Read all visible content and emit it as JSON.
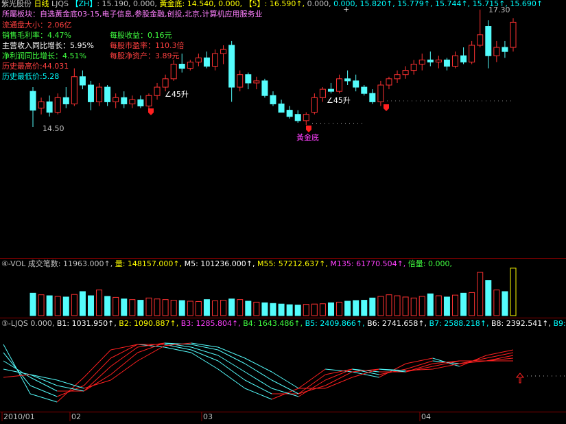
{
  "chart_data": [
    {
      "type": "candlestick",
      "header": [
        {
          "text": "紫光股份",
          "color": "#c0c0c0"
        },
        {
          "text": " 日线 ",
          "color": "#ffff00"
        },
        {
          "text": "LJQS ",
          "color": "#c0c0c0"
        },
        {
          "text": "【ZH】",
          "color": "#00ffff"
        },
        {
          "text": ": 15.190, 0.000, ",
          "color": "#c0c0c0"
        },
        {
          "text": "黃金底: 14.540, 0.000, ",
          "color": "#ffff00"
        },
        {
          "text": "【5】: 16.590↑, ",
          "color": "#ffff00"
        },
        {
          "text": "0.000, ",
          "color": "#c0c0c0"
        },
        {
          "text": "0.000, ",
          "color": "#00ffff"
        },
        {
          "text": "15.820↑, ",
          "color": "#00ffff"
        },
        {
          "text": "15.779↑, ",
          "color": "#00ffff"
        },
        {
          "text": "15.744↑, ",
          "color": "#00ffff"
        },
        {
          "text": "15.715↑, ",
          "color": "#00ffff"
        },
        {
          "text": "15.690↑",
          "color": "#00ffff"
        }
      ],
      "info": [
        {
          "text": "所屬板块：自选黃金底03-15,电子信息,参股金融,创投,北京,计算机应用服务业",
          "color": "#ff80ff"
        },
        {
          "text": "流通盘大小：2.06亿",
          "color": "#ff4040"
        },
        {
          "text": "销售毛利率：4.47%",
          "color": "#40ff40"
        },
        {
          "text": "每股收益：0.16元",
          "color": "#40ff40"
        },
        {
          "text": "主营收入同比增长：5.95%",
          "color": "#ffffff"
        },
        {
          "text": "每股市盈率：110.3倍",
          "color": "#ff4040"
        },
        {
          "text": "净利润同比增长：4.51%",
          "color": "#40ff40"
        },
        {
          "text": "每股净资产：3.89元",
          "color": "#ff4040"
        },
        {
          "text": "历史最高价:44.031",
          "color": "#ff4040"
        },
        {
          "text": "历史最低价:5.28",
          "color": "#00ffff"
        }
      ],
      "annotations": [
        "14.50",
        "17.30",
        "黃金底",
        "∠45升",
        "∠45升"
      ],
      "open": [
        15.35,
        14.95,
        15.1,
        14.85,
        15.2,
        15.05,
        15.7,
        15.5,
        15.1,
        15.45,
        15.1,
        15.2,
        15.05,
        15.15,
        15.0,
        15.25,
        15.45,
        15.65,
        16.0,
        15.9,
        16.05,
        16.15,
        15.95,
        16.25,
        16.45,
        15.45,
        15.75,
        15.55,
        15.6,
        15.25,
        15.05,
        14.9,
        14.8,
        14.65,
        14.85,
        15.2,
        15.4,
        15.35,
        15.65,
        15.6,
        15.45,
        15.3,
        15.1,
        15.5,
        15.65,
        15.75,
        15.85,
        16.0,
        16.1,
        16.05,
        16.1,
        15.95,
        16.2,
        16.05,
        16.45,
        16.9,
        16.2,
        16.4,
        16.4
      ],
      "high": [
        15.45,
        15.2,
        15.25,
        15.3,
        15.45,
        15.9,
        15.85,
        15.6,
        15.55,
        15.5,
        15.3,
        15.35,
        15.25,
        15.25,
        15.3,
        15.55,
        15.75,
        16.1,
        16.25,
        16.1,
        16.25,
        16.3,
        16.35,
        16.45,
        16.55,
        15.85,
        15.8,
        15.7,
        15.65,
        15.35,
        15.15,
        15.0,
        14.9,
        14.85,
        15.3,
        15.45,
        15.55,
        15.75,
        15.85,
        15.75,
        15.5,
        15.4,
        15.6,
        15.7,
        15.85,
        15.95,
        16.1,
        16.25,
        16.3,
        16.2,
        16.15,
        16.3,
        16.4,
        16.55,
        17.3,
        17.05,
        16.55,
        16.55,
        17.1
      ],
      "low": [
        14.5,
        14.8,
        14.75,
        14.8,
        14.95,
        15.0,
        15.4,
        14.9,
        15.0,
        15.0,
        14.95,
        14.95,
        14.95,
        14.95,
        14.9,
        15.15,
        15.35,
        15.6,
        15.8,
        15.85,
        15.95,
        15.9,
        15.85,
        16.0,
        15.1,
        15.35,
        15.4,
        15.4,
        15.2,
        15.0,
        14.9,
        14.7,
        14.6,
        14.55,
        14.8,
        15.1,
        15.3,
        15.3,
        15.5,
        15.35,
        15.25,
        15.05,
        15.0,
        15.4,
        15.55,
        15.65,
        15.75,
        15.85,
        15.95,
        15.9,
        15.85,
        15.9,
        16.0,
        16.0,
        16.4,
        15.9,
        16.05,
        16.15,
        16.3
      ],
      "close": [
        14.9,
        15.1,
        14.85,
        15.2,
        15.05,
        15.7,
        15.5,
        15.1,
        15.45,
        15.1,
        15.2,
        15.05,
        15.15,
        15.0,
        15.25,
        15.45,
        15.65,
        16.0,
        15.9,
        16.05,
        16.15,
        15.95,
        16.25,
        16.35,
        15.45,
        15.75,
        15.55,
        15.6,
        15.25,
        15.05,
        14.85,
        14.75,
        14.65,
        14.8,
        15.2,
        15.4,
        15.35,
        15.65,
        15.6,
        15.45,
        15.3,
        15.1,
        15.5,
        15.65,
        15.75,
        15.85,
        16.0,
        16.1,
        16.05,
        16.1,
        15.95,
        16.2,
        16.05,
        16.45,
        16.7,
        16.2,
        16.4,
        16.3,
        17.0
      ],
      "up_color": "#ff3232",
      "down_color": "#54fcfc",
      "ylim": [
        11.47,
        17.4
      ]
    },
    {
      "type": "bar",
      "header": [
        {
          "text": "④-VOL 成交笔数: 11963.000↑, ",
          "color": "#c0c0c0"
        },
        {
          "text": "量: 148157.000↑, ",
          "color": "#ffff00"
        },
        {
          "text": "M5: 101236.000↑, ",
          "color": "#ffffff"
        },
        {
          "text": "M55: 57212.637↑, ",
          "color": "#ffff00"
        },
        {
          "text": "M135: 61770.504↑, ",
          "color": "#ff40ff"
        },
        {
          "text": "倍量: 0.000,",
          "color": "#40ff40"
        }
      ],
      "values": [
        70000,
        65000,
        62000,
        60000,
        58000,
        66000,
        75000,
        62000,
        80000,
        60000,
        57000,
        52000,
        50000,
        48000,
        55000,
        52000,
        50000,
        48000,
        47000,
        45000,
        44000,
        50000,
        46000,
        48000,
        52000,
        50000,
        45000,
        42000,
        40000,
        38000,
        36000,
        34000,
        33000,
        35000,
        36000,
        37000,
        40000,
        42000,
        45000,
        47000,
        48000,
        55000,
        60000,
        65000,
        62000,
        58000,
        55000,
        60000,
        68000,
        62000,
        58000,
        64000,
        70000,
        72000,
        135000,
        110000,
        80000,
        75000,
        148157
      ],
      "ylim": [
        0,
        150000
      ]
    },
    {
      "type": "line",
      "header": [
        {
          "text": "③-LJQS 0.000, ",
          "color": "#c0c0c0"
        },
        {
          "text": "B1: 1031.950↑, ",
          "color": "#ffffff"
        },
        {
          "text": "B2: 1090.887↑, ",
          "color": "#ffff00"
        },
        {
          "text": "B3: 1285.804↑, ",
          "color": "#ff40ff"
        },
        {
          "text": "B4: 1643.486↑, ",
          "color": "#40ff40"
        },
        {
          "text": "B5: 2409.866↑, ",
          "color": "#00ffff"
        },
        {
          "text": "B6: 2741.658↑, ",
          "color": "#ffffff"
        },
        {
          "text": "B7: 2588.218↑, ",
          "color": "#00ffff"
        },
        {
          "text": "B8: 2392.541↑, ",
          "color": "#ffffff"
        },
        {
          "text": "B9:",
          "color": "#00ffff"
        }
      ],
      "series": [
        {
          "values": [
            2400,
            600,
            300,
            1200,
            2200,
            2400,
            2300,
            2100,
            1500,
            800,
            400,
            800,
            1500,
            1400,
            1200,
            1700,
            1900,
            1600,
            2000,
            2200
          ]
        },
        {
          "values": [
            2100,
            900,
            500,
            900,
            1900,
            2400,
            2400,
            2200,
            1800,
            1100,
            600,
            600,
            1300,
            1500,
            1300,
            1500,
            1800,
            1700,
            1900,
            2100
          ]
        },
        {
          "values": [
            1800,
            1200,
            700,
            700,
            1600,
            2300,
            2450,
            2300,
            2000,
            1400,
            800,
            500,
            1100,
            1500,
            1400,
            1400,
            1700,
            1800,
            1800,
            2000
          ]
        },
        {
          "values": [
            1500,
            1300,
            900,
            700,
            1300,
            2100,
            2450,
            2400,
            2200,
            1700,
            1100,
            600,
            900,
            1400,
            1500,
            1400,
            1600,
            1800,
            1800,
            1900
          ]
        },
        {
          "values": [
            1200,
            1300,
            1100,
            800,
            1100,
            1800,
            2350,
            2450,
            2300,
            1900,
            1400,
            800,
            800,
            1200,
            1500,
            1450,
            1500,
            1700,
            1800,
            1800
          ]
        }
      ],
      "up_color": "#ff2020",
      "down_color": "#54fcfc",
      "ylim": [
        0,
        3000
      ],
      "x_labels": [
        "2010/01",
        "02",
        "03",
        "04"
      ]
    }
  ]
}
